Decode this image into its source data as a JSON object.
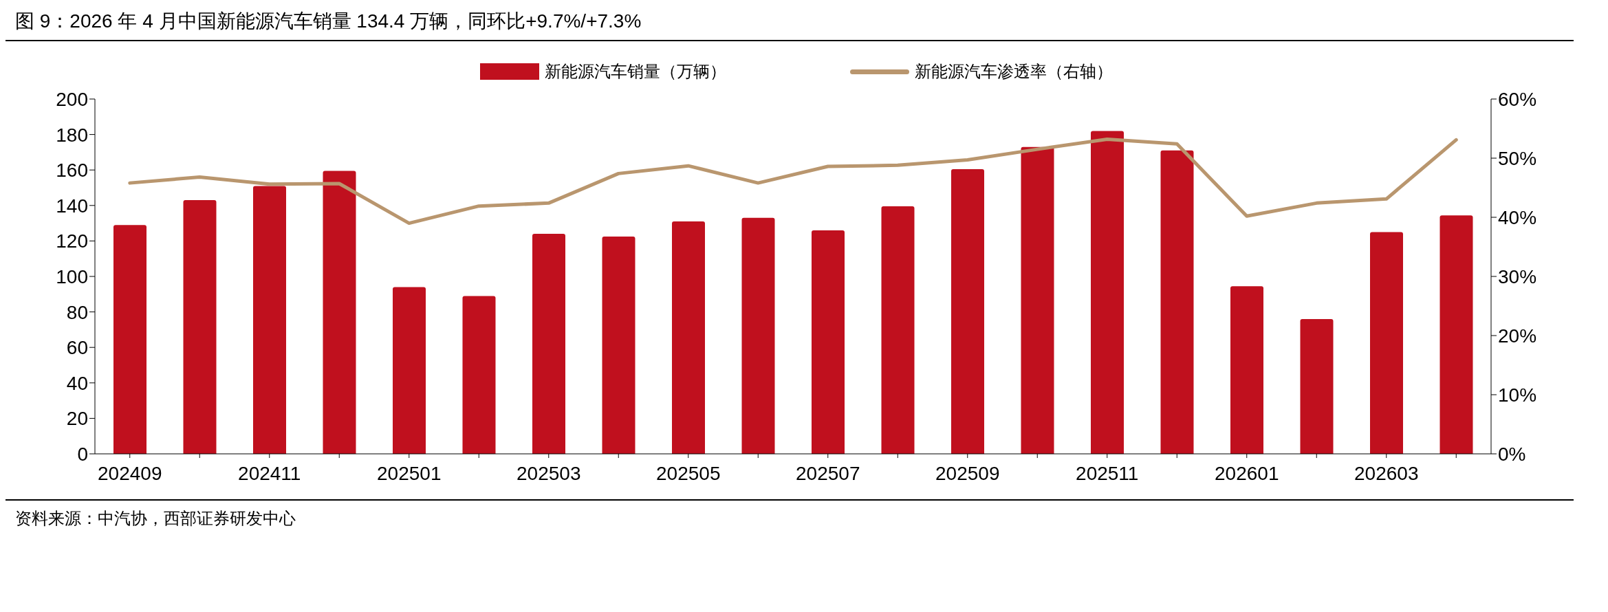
{
  "chart_data": {
    "type": "bar",
    "title": "图 9：2026 年 4 月中国新能源汽车销量 134.4 万辆，同环比+9.7%/+7.3%",
    "categories": [
      "202409",
      null,
      "202411",
      null,
      "202501",
      null,
      "202503",
      null,
      "202505",
      null,
      "202507",
      null,
      "202509",
      null,
      "202511",
      null,
      "202601",
      null,
      "202603",
      null
    ],
    "series": [
      {
        "name": "新能源汽车销量（万辆）",
        "color": "#c0101e",
        "values": [
          129,
          143,
          151,
          159.5,
          94,
          89,
          124,
          122.5,
          131,
          133,
          126,
          139.5,
          160.5,
          173,
          182,
          171,
          94.5,
          76,
          125,
          134.4
        ]
      },
      {
        "name": "新能源汽车渗透率（右轴）",
        "type": "line",
        "axis": "y2",
        "color": "#b9966e",
        "values": [
          45.8,
          46.8,
          45.6,
          45.7,
          39.0,
          41.9,
          42.4,
          47.4,
          48.7,
          45.8,
          48.6,
          48.8,
          49.7,
          51.5,
          53.2,
          52.4,
          40.2,
          42.4,
          43.1,
          53.1
        ]
      }
    ],
    "ylim": [
      0,
      200
    ],
    "yticks": [
      0,
      20,
      40,
      60,
      80,
      100,
      120,
      140,
      160,
      180,
      200
    ],
    "y2lim": [
      0,
      60
    ],
    "y2ticks": [
      {
        "value": 0,
        "label": "0%"
      },
      {
        "value": 10,
        "label": "10%"
      },
      {
        "value": 20,
        "label": "20%"
      },
      {
        "value": 30,
        "label": "30%"
      },
      {
        "value": 40,
        "label": "40%"
      },
      {
        "value": 50,
        "label": "50%"
      },
      {
        "value": 60,
        "label": "60%"
      }
    ],
    "legend": "top",
    "marker": "none",
    "annotations": [
      "资料来源：中汽协，西部证券研发中心"
    ]
  }
}
